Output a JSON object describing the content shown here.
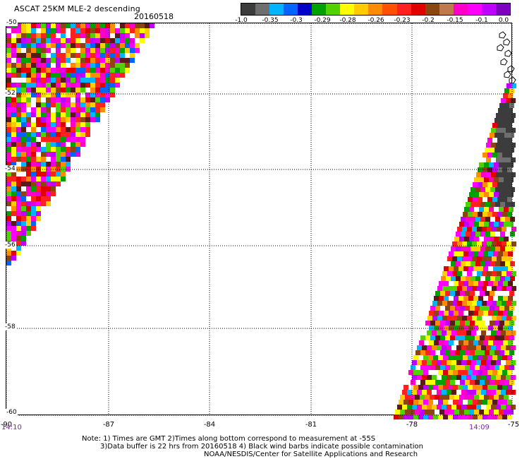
{
  "header": {
    "title": "ASCAT 25KM MLE-2 descending",
    "date": "20160518"
  },
  "colorbar": {
    "colors": [
      "#3c3c3c",
      "#6e6e6e",
      "#00b4ff",
      "#0064ff",
      "#0000c8",
      "#00a000",
      "#50d200",
      "#ffff00",
      "#ffcc00",
      "#ff8c00",
      "#ff5000",
      "#ff2020",
      "#e00000",
      "#8b4513",
      "#c07850",
      "#ff00c8",
      "#ff00ff",
      "#c000ff",
      "#8000c0"
    ],
    "labels": [
      "-1.0",
      "-0.35",
      "-0.3",
      "-0.29",
      "-0.28",
      "-0.26",
      "-0.23",
      "-0.2",
      "-0.15",
      "-0.1",
      "0.0"
    ]
  },
  "axes": {
    "y_labels": [
      "-50",
      "-52",
      "-54",
      "-56",
      "-58",
      "-60"
    ],
    "x_labels": [
      "-90",
      "-87",
      "-84",
      "-81",
      "-78",
      "-75"
    ]
  },
  "times": {
    "left": "14:10",
    "right": "14:09"
  },
  "footer": {
    "line1": "Note: 1) Times are GMT 2)Times along bottom correspond to measurement at -55S",
    "line2": "3)Data buffer is 22 hrs from 20160518 4) Black wind barbs indicate possible contamination",
    "line3": "NOAA/NESDIS/Center for Satellite Applications and Research"
  }
}
